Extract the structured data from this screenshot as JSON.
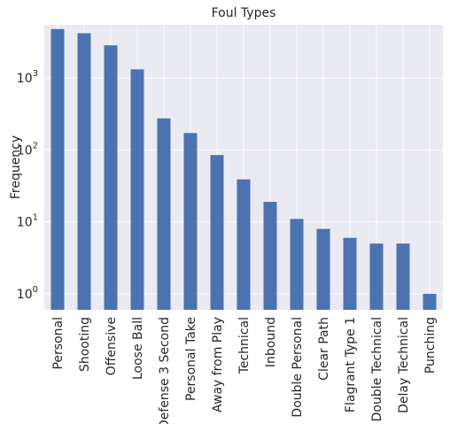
{
  "chart_data": {
    "type": "bar",
    "title": "Foul Types",
    "xlabel": "",
    "ylabel": "Frequency",
    "yscale": "log",
    "ylim": [
      0.6,
      5500
    ],
    "yticks": [
      {
        "value": 1,
        "base": "10",
        "exp": "0"
      },
      {
        "value": 10,
        "base": "10",
        "exp": "1"
      },
      {
        "value": 100,
        "base": "10",
        "exp": "2"
      },
      {
        "value": 1000,
        "base": "10",
        "exp": "3"
      }
    ],
    "grid": true,
    "categories": [
      "Personal",
      "Shooting",
      "Offensive",
      "Loose Ball",
      "Defense 3 Second",
      "Personal Take",
      "Away from Play",
      "Technical",
      "Inbound",
      "Double Personal",
      "Clear Path",
      "Flagrant Type 1",
      "Double Technical",
      "Delay Technical",
      "Punching"
    ],
    "values": [
      4800,
      4200,
      2850,
      1320,
      275,
      172,
      85,
      39,
      19,
      11,
      8,
      6,
      5,
      5,
      1
    ],
    "bar_color": "#4c72b0",
    "background_color": "#eaeaf2",
    "grid_color": "#ffffff"
  }
}
